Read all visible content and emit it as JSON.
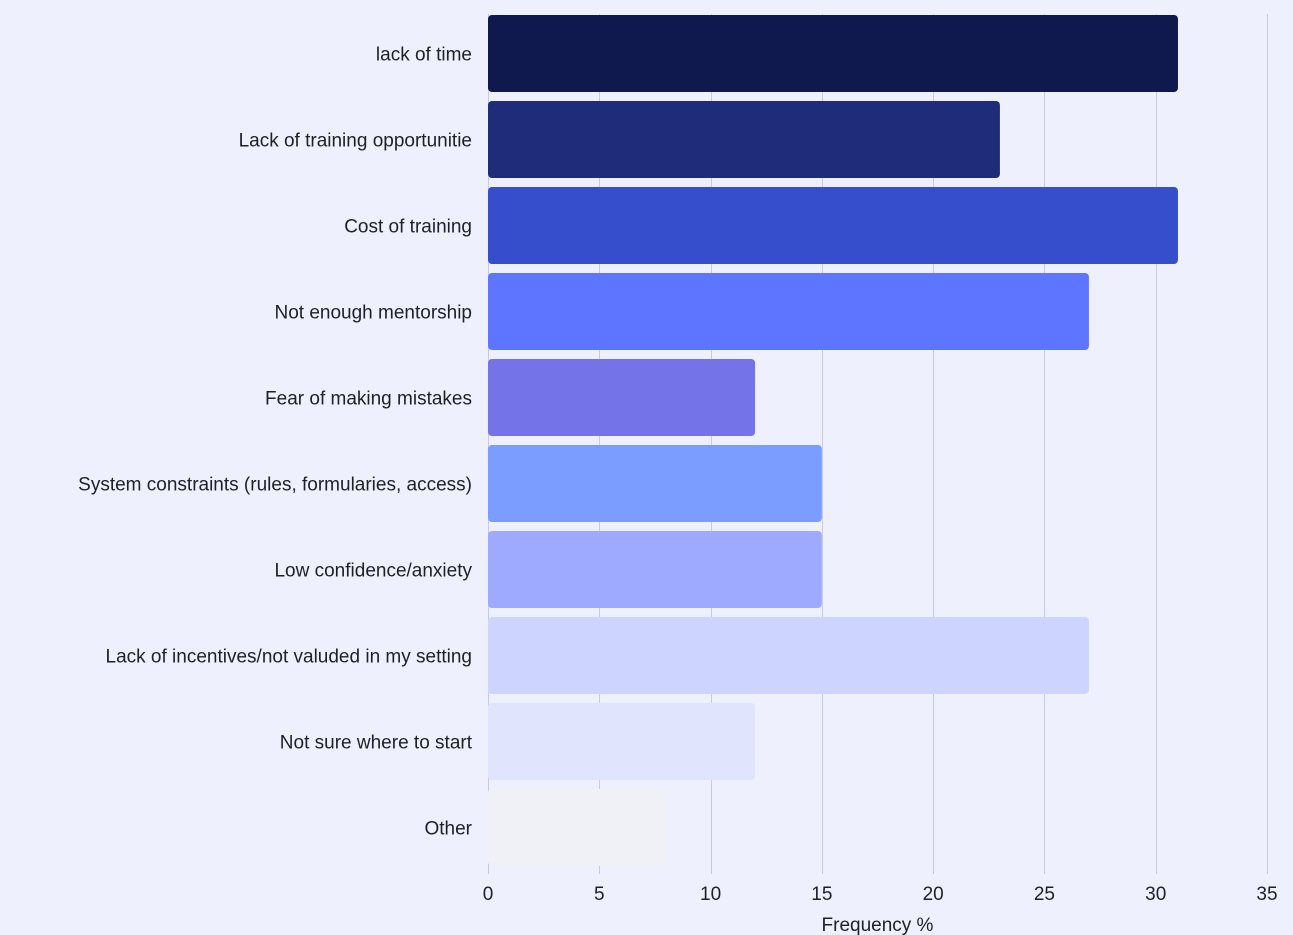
{
  "chart_data": {
    "type": "bar",
    "orientation": "horizontal",
    "title": "",
    "xlabel": "Frequency %",
    "ylabel": "",
    "xlim": [
      0,
      35
    ],
    "x_ticks": [
      0,
      5,
      10,
      15,
      20,
      25,
      30,
      35
    ],
    "grid": "vertical",
    "categories": [
      "lack of time",
      "Lack of training opportunitie",
      "Cost of training",
      "Not enough mentorship",
      "Fear of making mistakes",
      "System constraints (rules, formularies, access)",
      "Low confidence/anxiety",
      "Lack of incentives/not valuded in my setting",
      "Not sure where to start",
      "Other"
    ],
    "values": [
      31,
      23,
      31,
      27,
      12,
      15,
      15,
      27,
      12,
      8
    ],
    "colors": [
      "#10194d",
      "#1f2c7a",
      "#364ecb",
      "#5e76ff",
      "#7474e8",
      "#7b9dff",
      "#9eaaff",
      "#cdd4ff",
      "#e1e4fd",
      "#eff1f7"
    ]
  }
}
